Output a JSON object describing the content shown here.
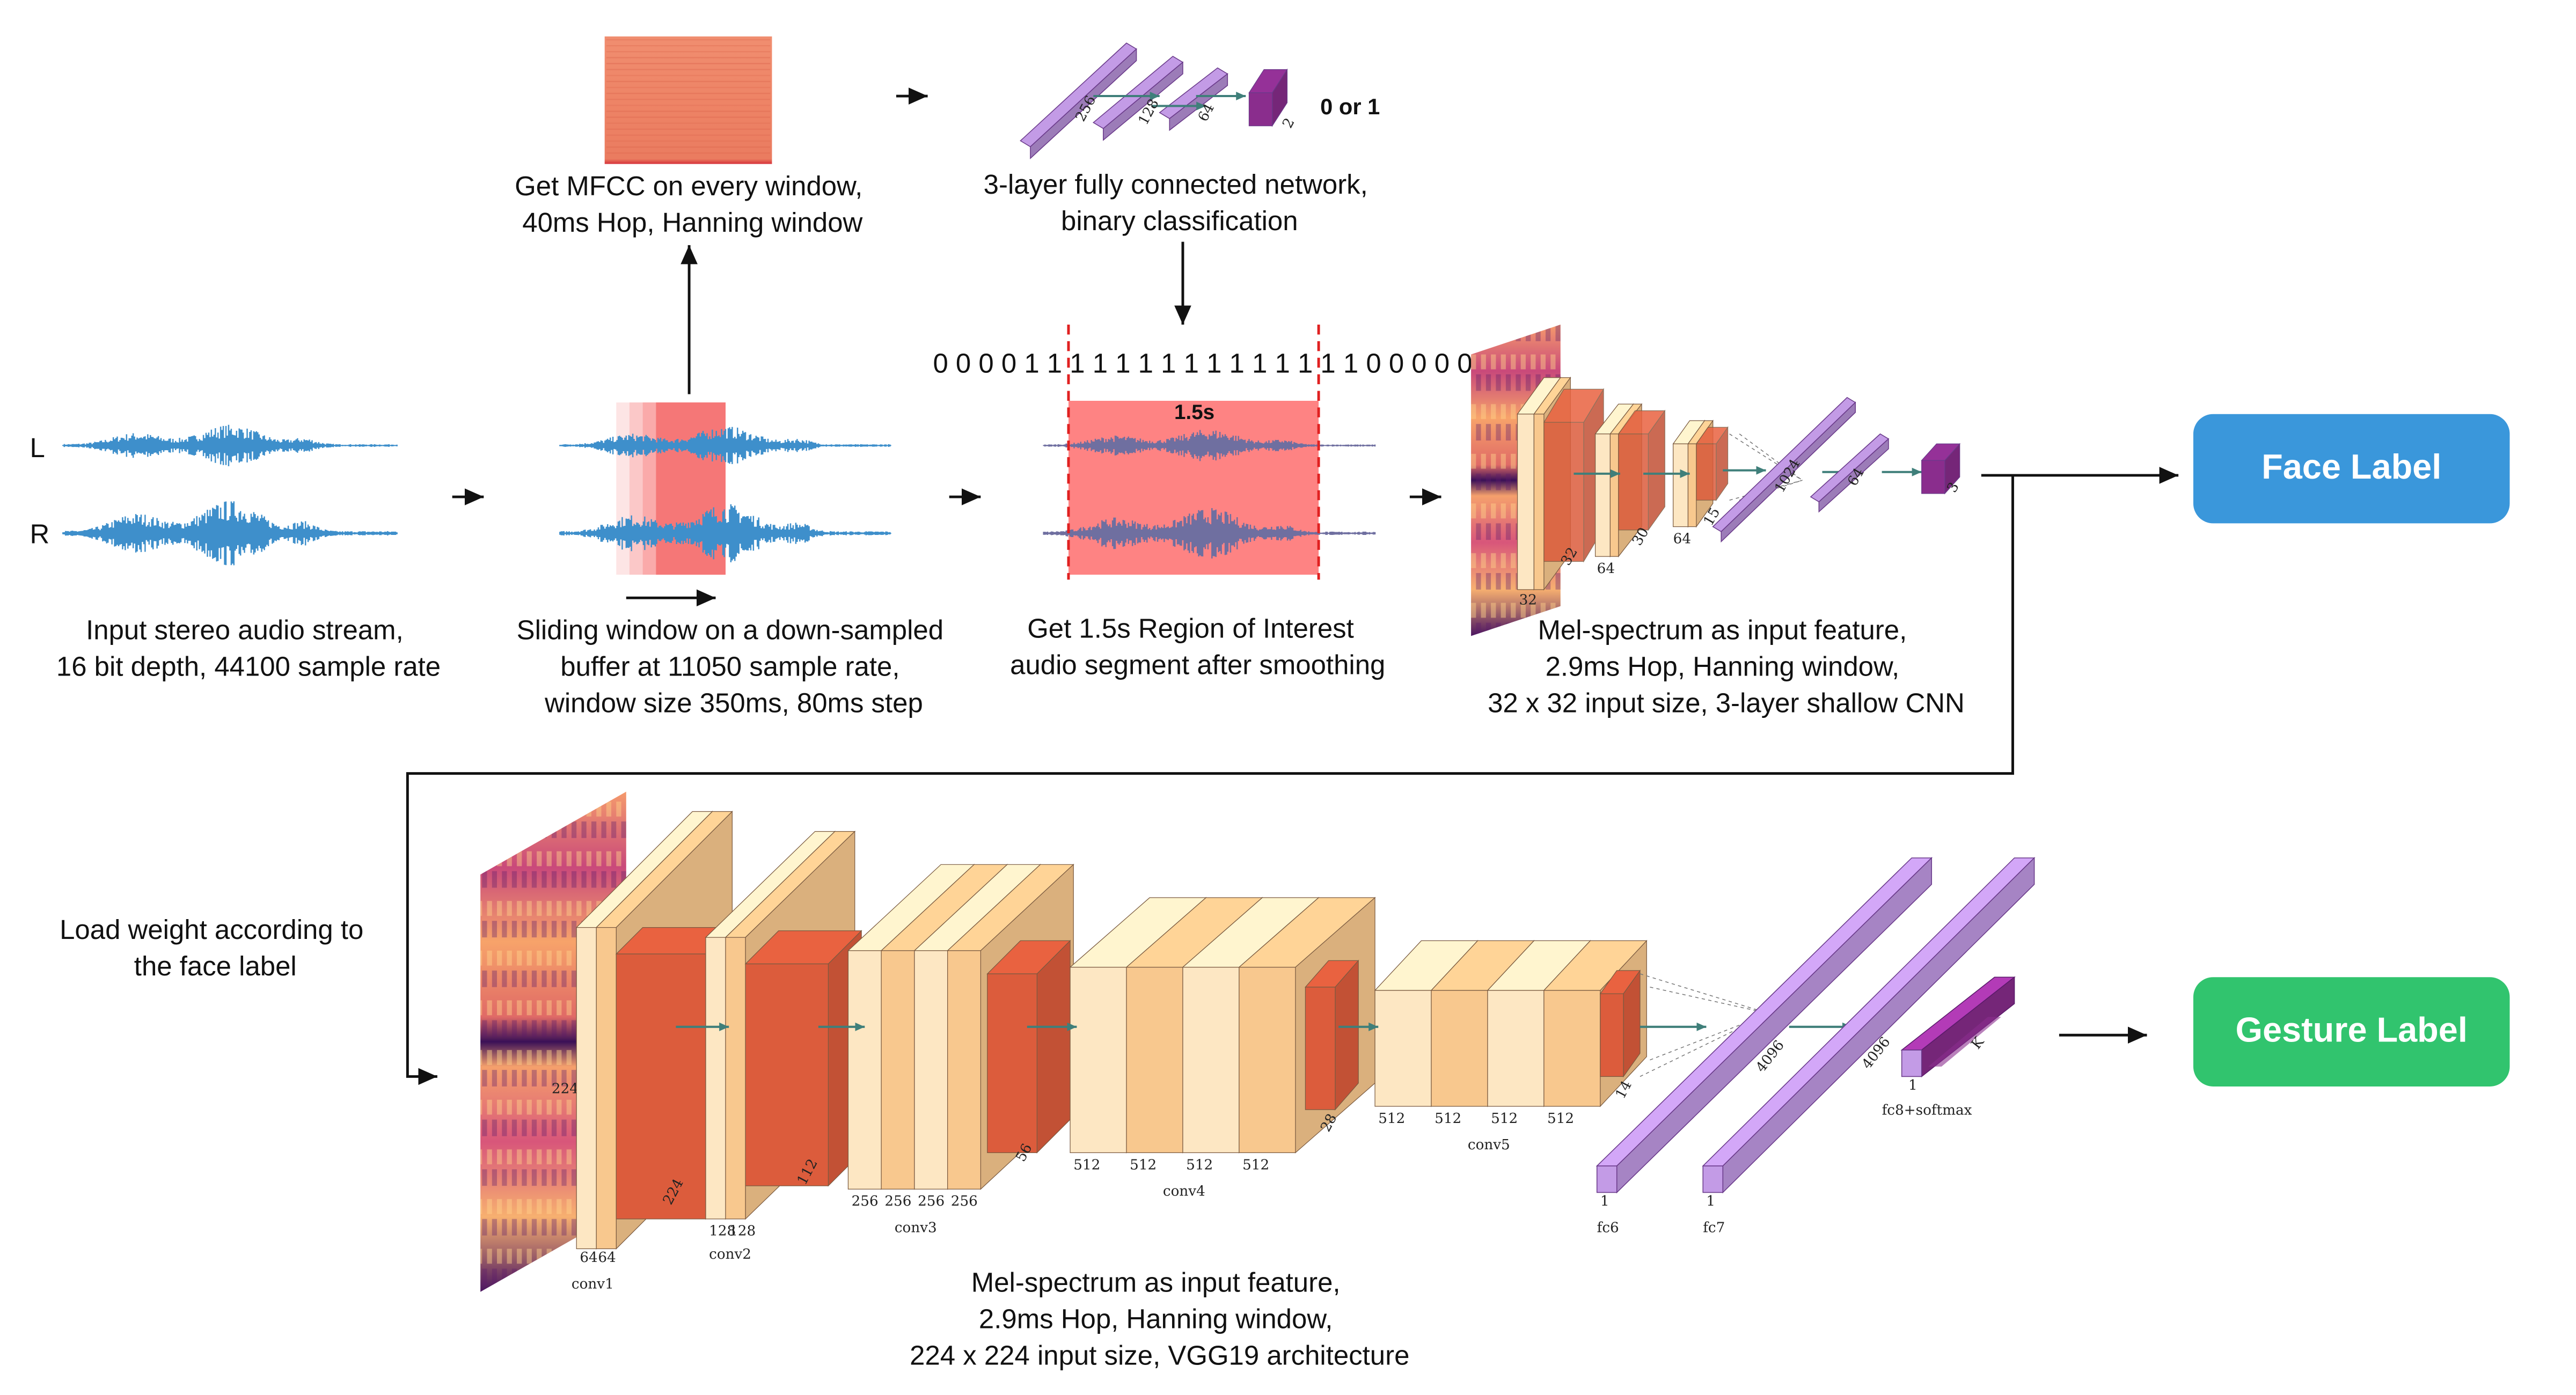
{
  "labels": {
    "channel_left": "L",
    "channel_right": "R",
    "output_face": "Face Label",
    "output_gesture": "Gesture Label",
    "fc_output": "0 or 1",
    "roi_duration": "1.5s",
    "bit_sequence": "0 0 0 0 1 1 1 1 1 1 1 1 1 1 1 1 1 1 1 0 0 0 0 0"
  },
  "captions": {
    "input": [
      "Input stereo audio stream,",
      "16 bit depth, 44100 sample rate"
    ],
    "sliding": [
      "Sliding window on a down-sampled",
      "buffer at 11050 sample rate,",
      "window size 350ms, 80ms step"
    ],
    "mfcc": [
      "Get MFCC on every window,",
      "40ms Hop, Hanning window"
    ],
    "fcnet": [
      "3-layer fully connected network,",
      "binary classification"
    ],
    "roi": [
      "Get 1.5s Region of Interest",
      "audio segment after smoothing"
    ],
    "shallow": [
      "Mel-spectrum as input feature,",
      "2.9ms Hop, Hanning window,",
      "32 x 32 input size, 3-layer shallow CNN"
    ],
    "load_weight": [
      "Load weight according to",
      "the face label"
    ],
    "vgg": [
      "Mel-spectrum as input feature,",
      "2.9ms Hop, Hanning window,",
      "224 x 224 input size, VGG19 architecture"
    ]
  },
  "fc_net_dims": [
    "256",
    "128",
    "64",
    "2"
  ],
  "shallow_cnn_dims": [
    "32",
    "32",
    "64",
    "30",
    "64",
    "15",
    "1024",
    "64",
    "3"
  ],
  "vgg": {
    "input_size": "224",
    "blocks": [
      {
        "name": "conv1",
        "channels": [
          "64",
          "64"
        ],
        "size": "224"
      },
      {
        "name": "conv2",
        "channels": [
          "128",
          "128"
        ],
        "size": "112"
      },
      {
        "name": "conv3",
        "channels": [
          "256",
          "256",
          "256",
          "256"
        ],
        "size": "56"
      },
      {
        "name": "conv4",
        "channels": [
          "512",
          "512",
          "512",
          "512"
        ],
        "size": "28"
      },
      {
        "name": "conv5",
        "channels": [
          "512",
          "512",
          "512",
          "512"
        ],
        "size": "14"
      }
    ],
    "fc": [
      {
        "name": "fc6",
        "dim": "4096",
        "one": "1"
      },
      {
        "name": "fc7",
        "dim": "4096",
        "one": "1"
      },
      {
        "name": "fc8+softmax",
        "dim": "K",
        "one": "1"
      }
    ]
  },
  "colors": {
    "waveform": "#3e8fcb",
    "window_red": "#f56f6f",
    "roi_red": "#fe8383",
    "cnn_light": "#fde7c3",
    "cnn_mid": "#f8c88e",
    "cnn_dark": "#dc5c3c",
    "fc_purple": "#c39be6",
    "fc_dark": "#8a2d8d",
    "face_badge": "#3a97db",
    "gesture_badge": "#31c46e"
  }
}
